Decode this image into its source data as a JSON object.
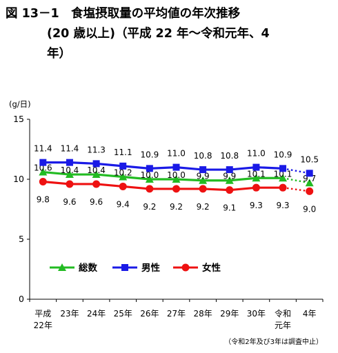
{
  "title": {
    "line1": "図 13－1　食塩摂取量の平均値の年次推移",
    "line2": "(20 歳以上)（平成 22 年～令和元年、4",
    "line3": "年）"
  },
  "note": "（令和2年及び3年は調査中止）",
  "colors": {
    "total": "#22bb22",
    "male": "#1a1ae6",
    "female": "#ee1111"
  },
  "chart_data": {
    "type": "line",
    "ylabel": "(g/日)",
    "ylim": [
      0,
      15
    ],
    "yticks": [
      0,
      5,
      10,
      15
    ],
    "categories": [
      [
        "平成",
        "22年"
      ],
      [
        "23年"
      ],
      [
        "24年"
      ],
      [
        "25年"
      ],
      [
        "26年"
      ],
      [
        "27年"
      ],
      [
        "28年"
      ],
      [
        "29年"
      ],
      [
        "30年"
      ],
      [
        "令和",
        "元年"
      ],
      [
        "4年"
      ]
    ],
    "gap_after_index": 9,
    "legend_position": "bottom-left",
    "series": [
      {
        "key": "total",
        "name": "総数",
        "marker": "triangle",
        "values": [
          10.6,
          10.4,
          10.4,
          10.2,
          10.0,
          10.0,
          9.9,
          9.9,
          10.1,
          10.1,
          9.7
        ]
      },
      {
        "key": "male",
        "name": "男性",
        "marker": "square",
        "values": [
          11.4,
          11.4,
          11.3,
          11.1,
          10.9,
          11.0,
          10.8,
          10.8,
          11.0,
          10.9,
          10.5
        ]
      },
      {
        "key": "female",
        "name": "女性",
        "marker": "circle",
        "values": [
          9.8,
          9.6,
          9.6,
          9.4,
          9.2,
          9.2,
          9.2,
          9.1,
          9.3,
          9.3,
          9.0
        ]
      }
    ]
  }
}
